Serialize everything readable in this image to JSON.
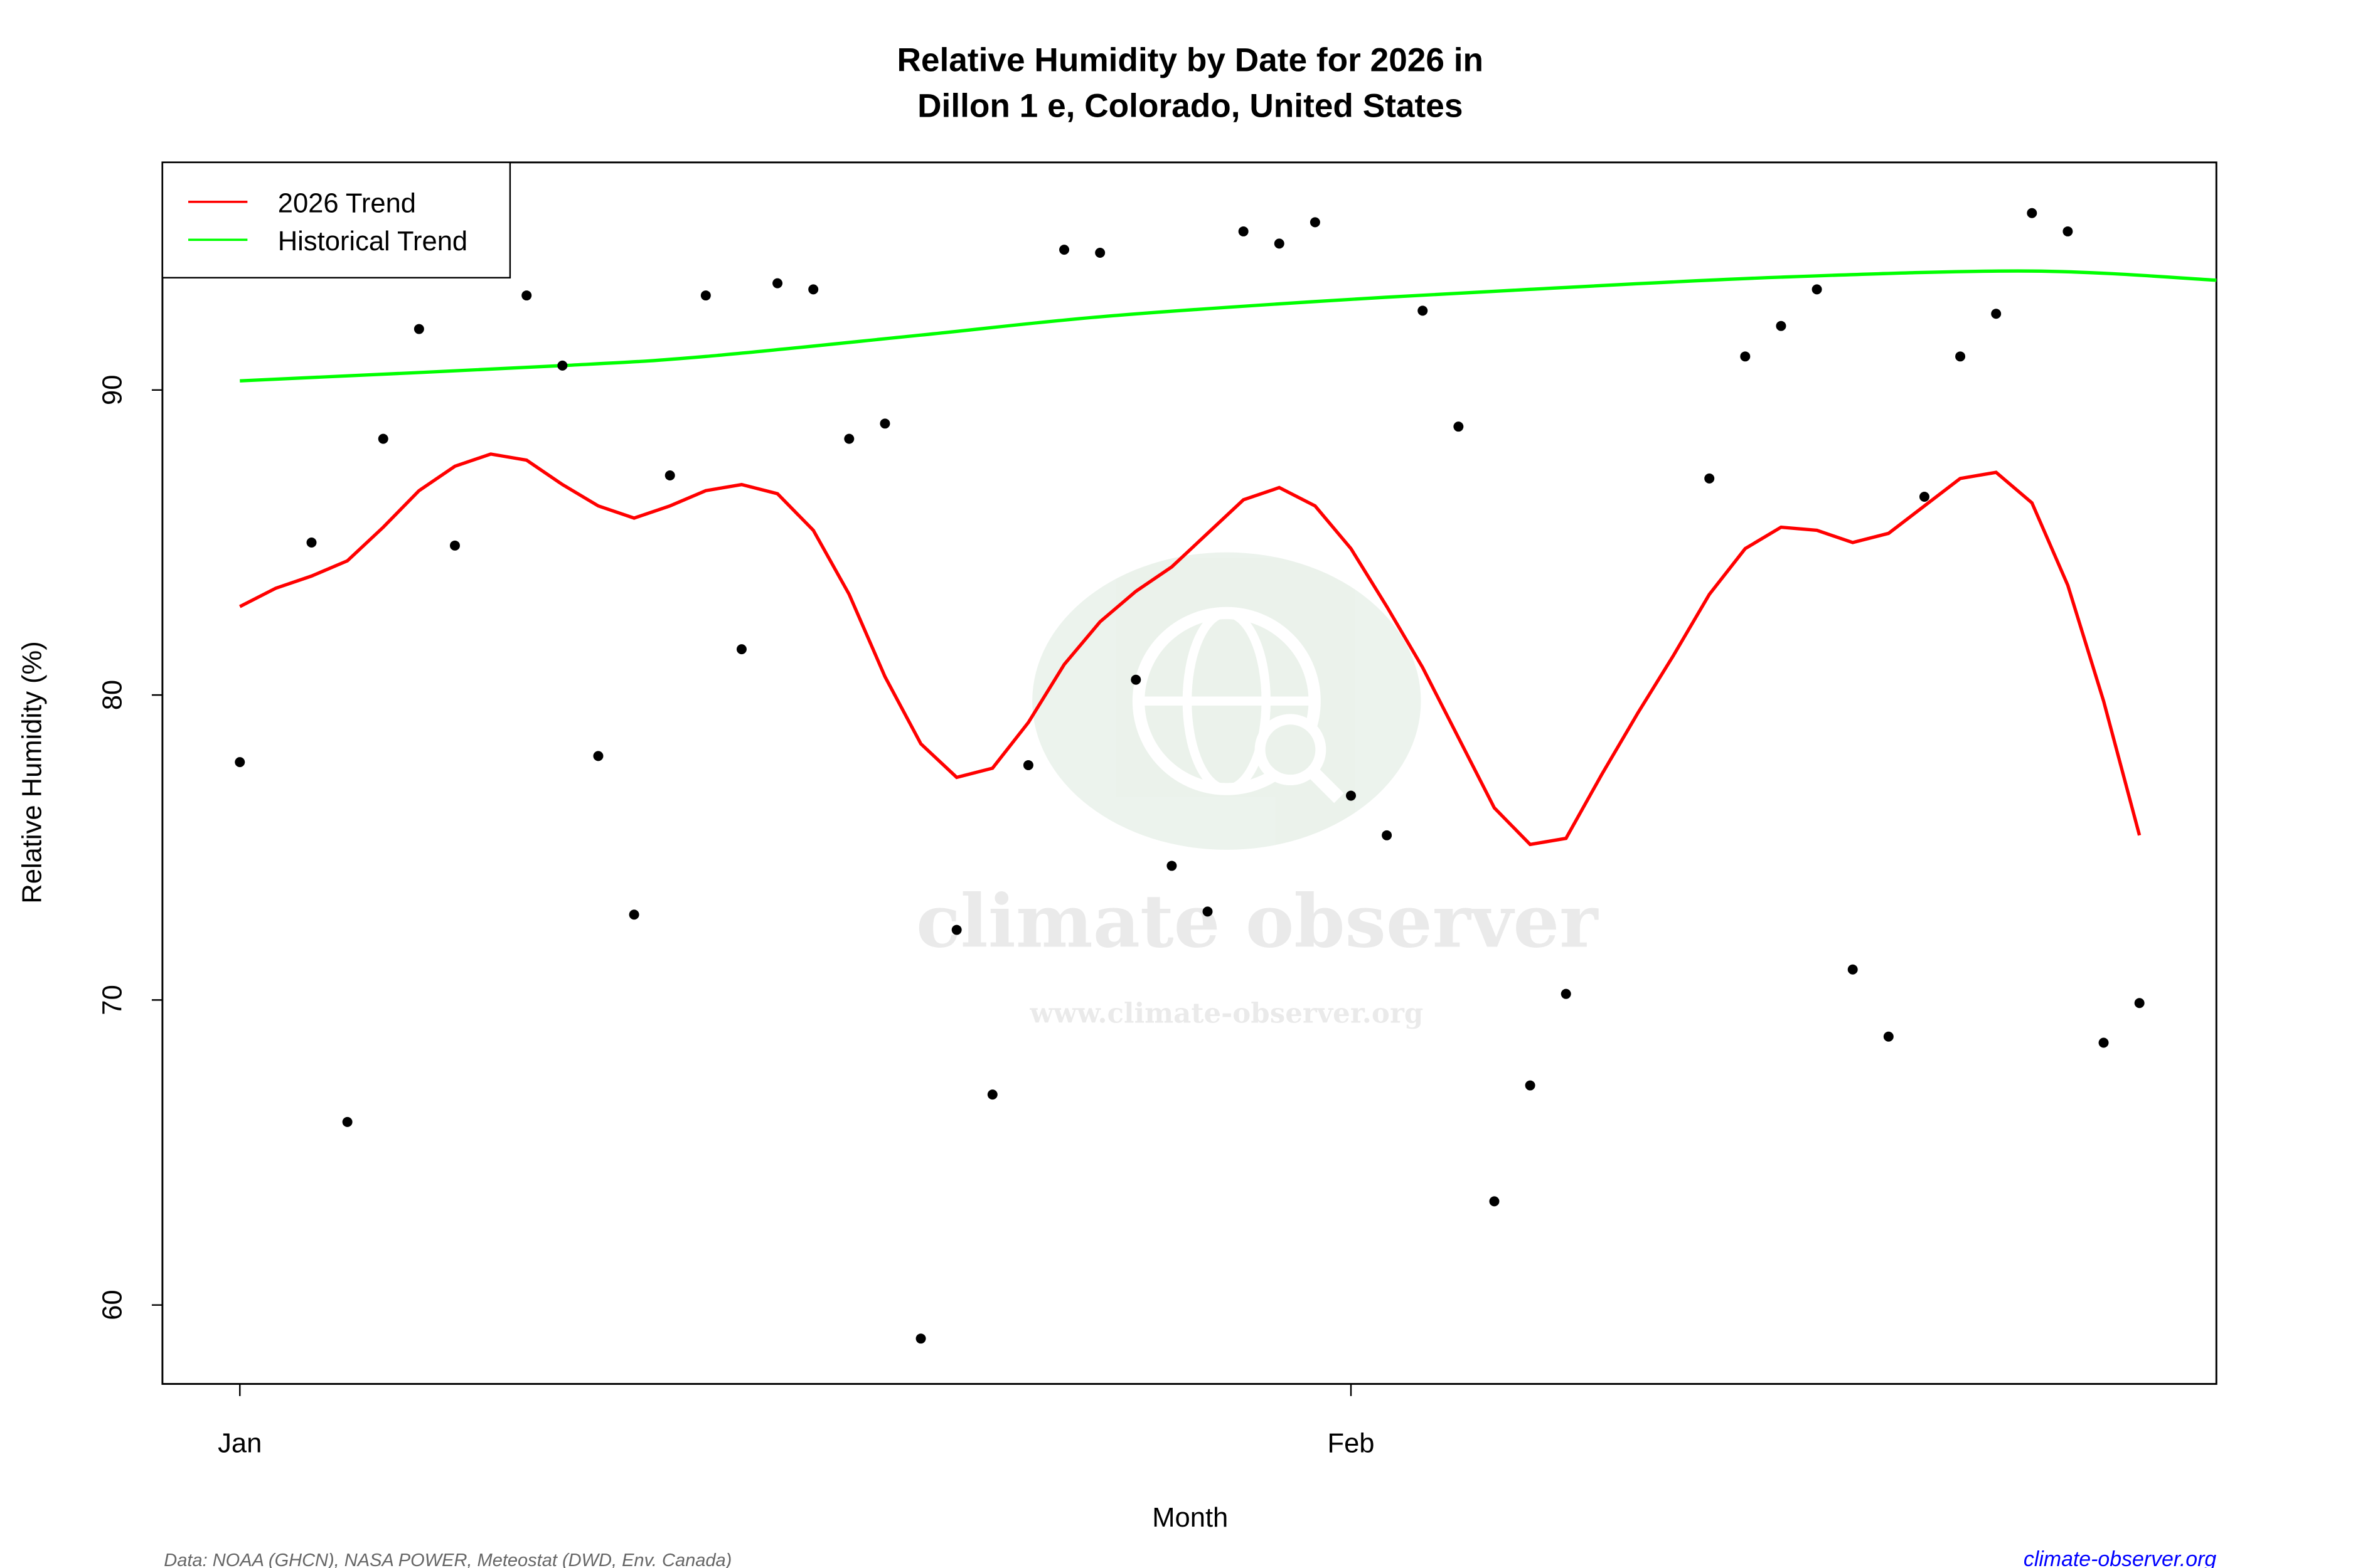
{
  "chart_data": {
    "type": "scatter",
    "title": [
      "Relative Humidity by Date for 2026 in",
      "Dillon 1 e, Colorado, United States"
    ],
    "xlabel": "Month",
    "ylabel": "Relative Humidity (%)",
    "xlim": [
      "2025-12-30",
      "2026-02-26"
    ],
    "ylim": [
      57.5,
      97.5
    ],
    "x_ticks": [
      {
        "date": "2026-01-01",
        "label": "Jan"
      },
      {
        "date": "2026-02-01",
        "label": "Feb"
      }
    ],
    "y_ticks": [
      60,
      70,
      80,
      90
    ],
    "grid": false,
    "legend_position": "top-left",
    "colors": {
      "points": "#000000",
      "trend_2026": "#ff0000",
      "historical": "#00ff00",
      "source_link": "#0000ff"
    },
    "points": {
      "x": [
        "2026-01-01",
        "2026-01-03",
        "2026-01-04",
        "2026-01-05",
        "2026-01-06",
        "2026-01-07",
        "2026-01-09",
        "2026-01-10",
        "2026-01-11",
        "2026-01-12",
        "2026-01-13",
        "2026-01-14",
        "2026-01-15",
        "2026-01-16",
        "2026-01-17",
        "2026-01-18",
        "2026-01-19",
        "2026-01-20",
        "2026-01-21",
        "2026-01-22",
        "2026-01-23",
        "2026-01-24",
        "2026-01-25",
        "2026-01-26",
        "2026-01-27",
        "2026-01-28",
        "2026-01-29",
        "2026-01-30",
        "2026-01-31",
        "2026-02-01",
        "2026-02-02",
        "2026-02-03",
        "2026-02-04",
        "2026-02-05",
        "2026-02-06",
        "2026-02-07",
        "2026-02-11",
        "2026-02-12",
        "2026-02-13",
        "2026-02-14",
        "2026-02-15",
        "2026-02-16",
        "2026-02-17",
        "2026-02-18",
        "2026-02-19",
        "2026-02-20",
        "2026-02-21",
        "2026-02-22",
        "2026-02-23"
      ],
      "y": [
        77.8,
        85.0,
        66.0,
        88.4,
        92.0,
        84.9,
        93.1,
        90.8,
        78.0,
        72.8,
        87.2,
        93.1,
        81.5,
        93.5,
        93.3,
        88.4,
        88.9,
        58.9,
        72.3,
        66.9,
        77.7,
        94.6,
        94.5,
        80.5,
        74.4,
        72.9,
        95.2,
        94.8,
        95.5,
        76.7,
        75.4,
        92.6,
        88.8,
        63.4,
        67.2,
        70.2,
        87.1,
        91.1,
        92.1,
        93.3,
        71.0,
        68.8,
        86.5,
        91.1,
        92.5,
        95.8,
        95.2,
        68.6,
        69.9
      ]
    },
    "series": [
      {
        "name": "2026 Trend",
        "x_start": "2026-01-01",
        "values": [
          82.9,
          83.5,
          83.9,
          84.4,
          85.5,
          86.7,
          87.5,
          87.9,
          87.7,
          86.9,
          86.2,
          85.8,
          86.2,
          86.7,
          86.9,
          86.6,
          85.4,
          83.3,
          80.6,
          78.4,
          77.3,
          77.6,
          79.1,
          81.0,
          82.4,
          83.4,
          84.2,
          85.3,
          86.4,
          86.8,
          86.2,
          84.8,
          82.9,
          80.9,
          78.6,
          76.3,
          75.1,
          75.3,
          77.4,
          79.4,
          81.3,
          83.3,
          84.8,
          85.5,
          85.4,
          85.0,
          85.3,
          86.2,
          87.1,
          87.3,
          86.3,
          83.6,
          79.8,
          75.4
        ]
      },
      {
        "name": "Historical Trend",
        "x": [
          "2026-01-01",
          "2026-01-10",
          "2026-01-14",
          "2026-01-20",
          "2026-01-25",
          "2026-01-31",
          "2026-02-06",
          "2026-02-13",
          "2026-02-20",
          "2026-02-26"
        ],
        "values": [
          90.3,
          90.8,
          91.1,
          91.8,
          92.4,
          92.9,
          93.3,
          93.7,
          93.9,
          93.6
        ]
      }
    ],
    "source_note": "Data: NOAA (GHCN), NASA POWER, Meteostat (DWD, Env. Canada)",
    "source_link": "climate-observer.org"
  },
  "watermark": {
    "name": "climate observer",
    "url": "www.climate-observer.org"
  }
}
